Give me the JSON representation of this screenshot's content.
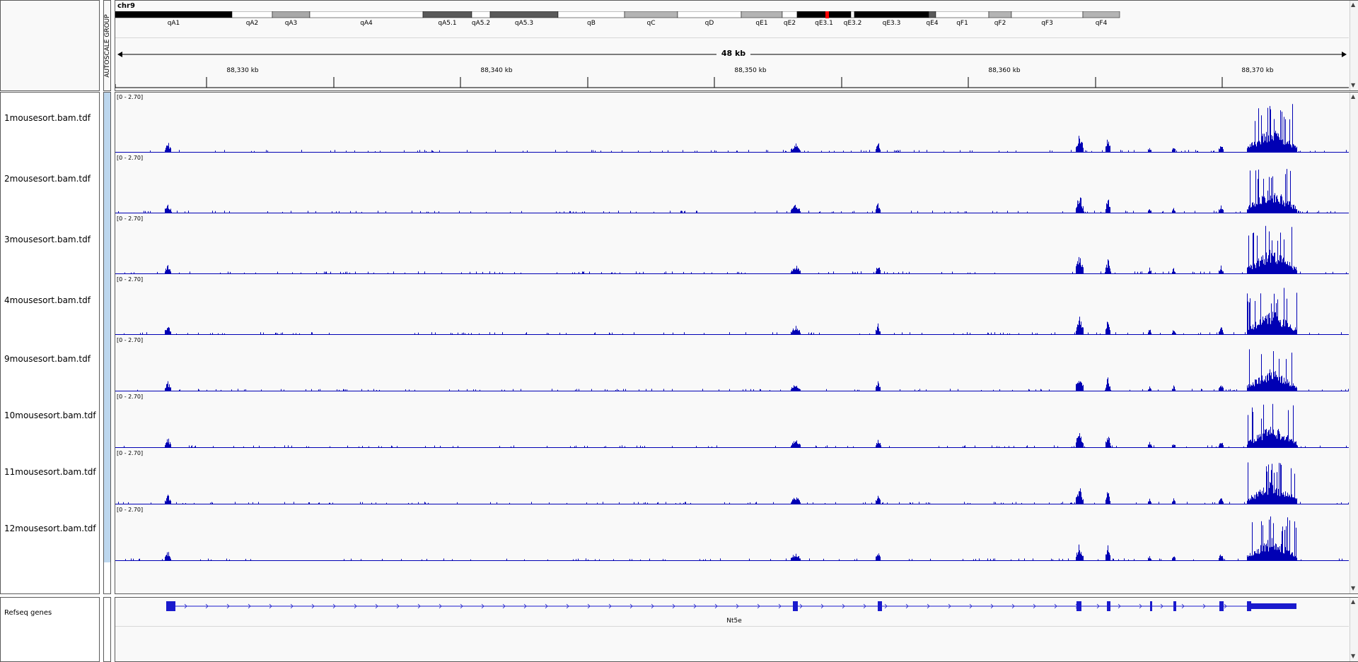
{
  "header": {
    "chromosome": "chr9",
    "autoscale_label": "AUTOSCALE GROUP",
    "span_label": "48 kb",
    "ruler_ticks": [
      "88,330 kb",
      "88,340 kb",
      "88,350 kb",
      "88,360 kb",
      "88,370 kb"
    ]
  },
  "ideogram": {
    "bands": [
      {
        "name": "qA1",
        "stain": "#000000"
      },
      {
        "name": "qA2",
        "stain": "#ffffff"
      },
      {
        "name": "qA3",
        "stain": "#a8a8a8"
      },
      {
        "name": "qA4",
        "stain": "#ffffff"
      },
      {
        "name": "qA5.1",
        "stain": "#5a5a5a"
      },
      {
        "name": "qA5.2",
        "stain": "#ffffff"
      },
      {
        "name": "qA5.3",
        "stain": "#5a5a5a"
      },
      {
        "name": "qB",
        "stain": "#ffffff"
      },
      {
        "name": "qC",
        "stain": "#b4b4b4"
      },
      {
        "name": "qD",
        "stain": "#ffffff"
      },
      {
        "name": "qE1",
        "stain": "#b4b4b4"
      },
      {
        "name": "qE2",
        "stain": "#ffffff"
      },
      {
        "name": "qE3.1",
        "stain": "#000000"
      },
      {
        "name": "qE3.2",
        "stain": "#ffffff"
      },
      {
        "name": "qE3.3",
        "stain": "#000000"
      },
      {
        "name": "qE4",
        "stain": "#5a5a5a"
      },
      {
        "name": "qF1",
        "stain": "#ffffff"
      },
      {
        "name": "qF2",
        "stain": "#b4b4b4"
      },
      {
        "name": "qF3",
        "stain": "#ffffff"
      },
      {
        "name": "qF4",
        "stain": "#b4b4b4"
      }
    ],
    "current_region_color": "#ff0000"
  },
  "tracks": [
    {
      "name": "1mousesort.bam.tdf",
      "range": "[0 - 2.70]"
    },
    {
      "name": "2mousesort.bam.tdf",
      "range": "[0 - 2.70]"
    },
    {
      "name": "3mousesort.bam.tdf",
      "range": "[0 - 2.70]"
    },
    {
      "name": "4mousesort.bam.tdf",
      "range": "[0 - 2.70]"
    },
    {
      "name": "9mousesort.bam.tdf",
      "range": "[0 - 2.70]"
    },
    {
      "name": "10mousesort.bam.tdf",
      "range": "[0 - 2.70]"
    },
    {
      "name": "11mousesort.bam.tdf",
      "range": "[0 - 2.70]"
    },
    {
      "name": "12mousesort.bam.tdf",
      "range": "[0 - 2.70]"
    }
  ],
  "coverage_color": "#0000b4",
  "genes": {
    "track_name": "Refseq genes",
    "gene_name": "Nt5e",
    "color": "#1a1acd"
  },
  "icons": {
    "up": "triangle-up-icon",
    "down": "triangle-down-icon"
  }
}
